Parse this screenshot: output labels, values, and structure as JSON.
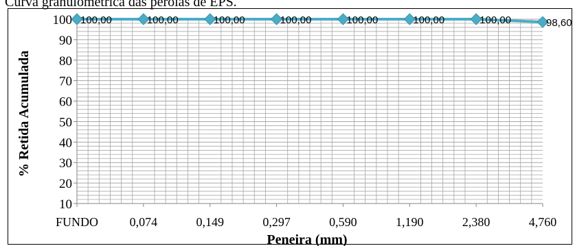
{
  "caption": "Curva granulométrica das pérolas de EPS.",
  "chart_data": {
    "type": "line",
    "title": "",
    "xlabel": "Peneira (mm)",
    "ylabel": "% Retida Acumulada",
    "categories": [
      "FUNDO",
      "0,074",
      "0,149",
      "0,297",
      "0,590",
      "1,190",
      "2,380",
      "4,760"
    ],
    "series": [
      {
        "values": [
          100.0,
          100.0,
          100.0,
          100.0,
          100.0,
          100.0,
          100.0,
          98.6
        ],
        "labels": [
          "100,00",
          "100,00",
          "100,00",
          "100,00",
          "100,00",
          "100,00",
          "100,00",
          "98,60"
        ]
      }
    ],
    "ylim": [
      10,
      100
    ],
    "yticks": [
      10,
      20,
      30,
      40,
      50,
      60,
      70,
      80,
      90,
      100
    ],
    "grid": true,
    "colors": {
      "line": "#4bacc6",
      "marker": "#4bacc6",
      "grid": "#a6a6a6",
      "axis": "#868686"
    }
  }
}
